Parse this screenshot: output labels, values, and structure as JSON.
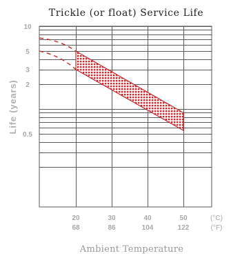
{
  "chart_data": {
    "type": "area",
    "title": "Trickle (or float) Service Life",
    "xlabel": "Ambient Temperature",
    "ylabel": "Life (years)",
    "y_scale": "log",
    "ylim": [
      0.2,
      10
    ],
    "xlim": [
      10,
      55
    ],
    "y_tick_labels": [
      {
        "value": 10,
        "label": "10"
      },
      {
        "value": 5,
        "label": "5"
      },
      {
        "value": 3,
        "label": "3"
      },
      {
        "value": 2,
        "label": "2"
      },
      {
        "value": 0.5,
        "label": "0.5"
      }
    ],
    "y_gridlines": [
      10,
      9,
      8,
      7,
      6,
      5,
      4,
      3,
      2,
      1,
      0.9,
      0.8,
      0.7,
      0.6,
      0.5,
      0.4,
      0.3,
      0.2
    ],
    "x_ticks": [
      {
        "celsius": 20,
        "fahrenheit": "68"
      },
      {
        "celsius": 30,
        "fahrenheit": "86"
      },
      {
        "celsius": 40,
        "fahrenheit": "104"
      },
      {
        "celsius": 50,
        "fahrenheit": "122"
      }
    ],
    "x_units": [
      "(°C)",
      "(°F)"
    ],
    "grid": true,
    "band": {
      "x": [
        20,
        50
      ],
      "upper": [
        5,
        0.9
      ],
      "lower": [
        3,
        0.55
      ],
      "color": "#c8262b"
    },
    "extrapolation": {
      "x": [
        10,
        20
      ],
      "upper": [
        7.2,
        5
      ],
      "lower": [
        5,
        3
      ],
      "style": "dashed"
    }
  }
}
